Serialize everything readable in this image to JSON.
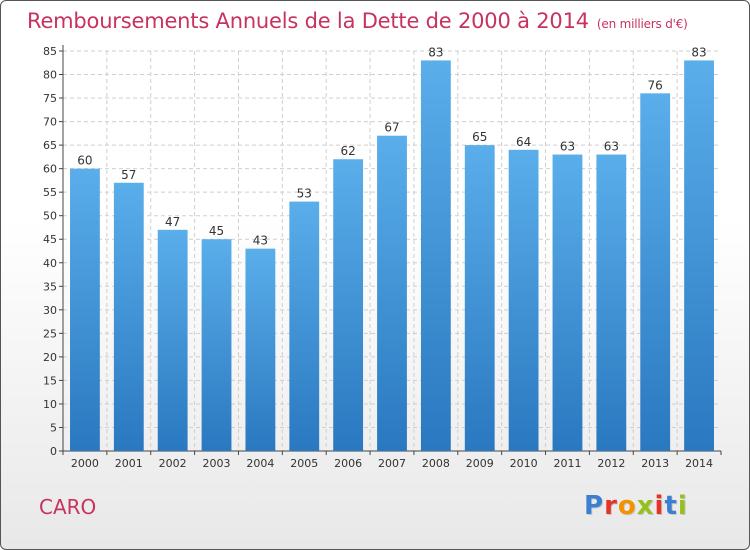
{
  "header": {
    "title": "Remboursements Annuels de la Dette de 2000 à 2014",
    "unit": "(en milliers d'€)"
  },
  "footer": {
    "city": "CARO",
    "logo": [
      "P",
      "r",
      "o",
      "x",
      "i",
      "t",
      "i"
    ],
    "logo_colors": [
      "#3a7fd0",
      "#e6332a",
      "#f39200",
      "#95c11f",
      "#e6332a",
      "#3a7fd0",
      "#95c11f"
    ]
  },
  "chart_data": {
    "type": "bar",
    "title": "Remboursements Annuels de la Dette de 2000 à 2014",
    "xlabel": "",
    "ylabel": "",
    "categories": [
      "2000",
      "2001",
      "2002",
      "2003",
      "2004",
      "2005",
      "2006",
      "2007",
      "2008",
      "2009",
      "2010",
      "2011",
      "2012",
      "2013",
      "2014"
    ],
    "values": [
      60,
      57,
      47,
      45,
      43,
      53,
      62,
      67,
      83,
      65,
      64,
      63,
      63,
      76,
      83
    ],
    "ylim": [
      0,
      85
    ],
    "yticks": [
      0,
      5,
      10,
      15,
      20,
      25,
      30,
      35,
      40,
      45,
      50,
      55,
      60,
      65,
      70,
      75,
      80,
      85
    ],
    "grid": true,
    "legend": "none",
    "bar_color_top": "#5aaeea",
    "bar_color_bottom": "#2a78c0"
  }
}
